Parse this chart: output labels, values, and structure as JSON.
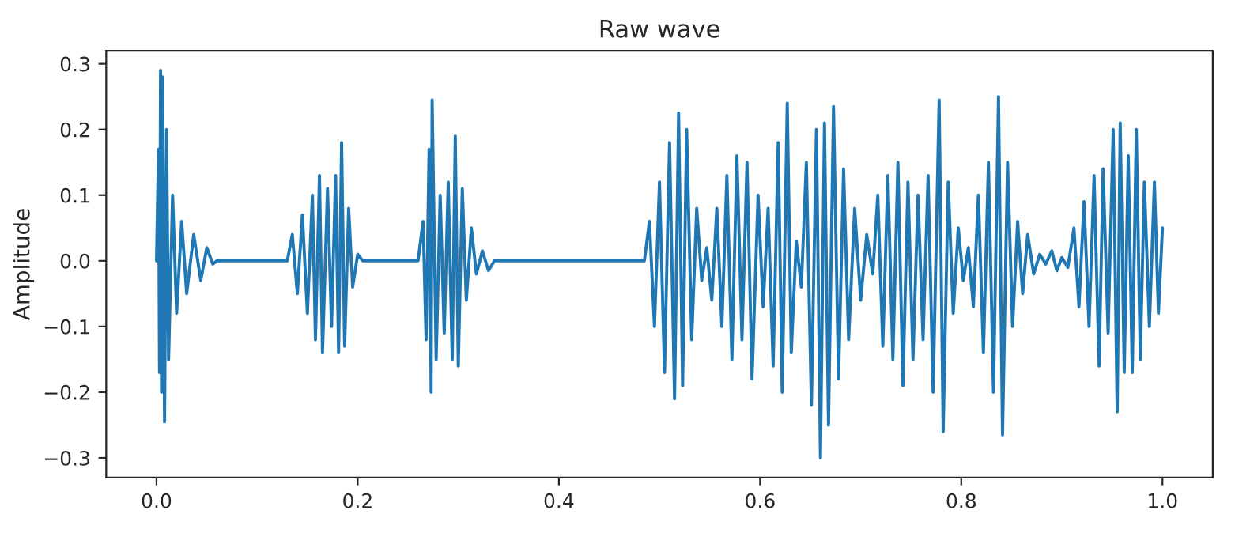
{
  "chart_data": {
    "type": "line",
    "title": "Raw wave",
    "ylabel": "Amplitude",
    "x": [
      0.0,
      0.002,
      0.003,
      0.004,
      0.005,
      0.006,
      0.008,
      0.01,
      0.012,
      0.016,
      0.02,
      0.025,
      0.03,
      0.037,
      0.044,
      0.05,
      0.056,
      0.06,
      0.13,
      0.135,
      0.14,
      0.145,
      0.15,
      0.155,
      0.158,
      0.162,
      0.165,
      0.17,
      0.174,
      0.178,
      0.181,
      0.184,
      0.187,
      0.191,
      0.195,
      0.2,
      0.205,
      0.26,
      0.265,
      0.268,
      0.271,
      0.273,
      0.274,
      0.278,
      0.282,
      0.286,
      0.29,
      0.294,
      0.297,
      0.3,
      0.304,
      0.308,
      0.313,
      0.318,
      0.324,
      0.33,
      0.336,
      0.485,
      0.49,
      0.495,
      0.5,
      0.505,
      0.51,
      0.515,
      0.519,
      0.523,
      0.527,
      0.532,
      0.537,
      0.542,
      0.547,
      0.552,
      0.557,
      0.562,
      0.567,
      0.572,
      0.577,
      0.582,
      0.587,
      0.592,
      0.598,
      0.603,
      0.608,
      0.613,
      0.618,
      0.622,
      0.627,
      0.631,
      0.636,
      0.641,
      0.646,
      0.651,
      0.656,
      0.66,
      0.664,
      0.668,
      0.673,
      0.678,
      0.683,
      0.688,
      0.694,
      0.7,
      0.706,
      0.712,
      0.717,
      0.722,
      0.727,
      0.732,
      0.737,
      0.742,
      0.747,
      0.752,
      0.757,
      0.762,
      0.767,
      0.772,
      0.778,
      0.782,
      0.787,
      0.792,
      0.797,
      0.802,
      0.807,
      0.812,
      0.817,
      0.822,
      0.827,
      0.832,
      0.837,
      0.841,
      0.846,
      0.851,
      0.856,
      0.861,
      0.866,
      0.872,
      0.878,
      0.884,
      0.89,
      0.895,
      0.9,
      0.906,
      0.912,
      0.917,
      0.922,
      0.927,
      0.932,
      0.937,
      0.941,
      0.946,
      0.951,
      0.955,
      0.958,
      0.962,
      0.966,
      0.97,
      0.974,
      0.978,
      0.982,
      0.987,
      0.992,
      0.996,
      1.0
    ],
    "series": [
      {
        "color": "#1f77b4",
        "values": [
          0.0,
          0.17,
          -0.17,
          0.29,
          -0.2,
          0.28,
          -0.245,
          0.2,
          -0.15,
          0.1,
          -0.08,
          0.06,
          -0.05,
          0.04,
          -0.03,
          0.02,
          -0.005,
          0.0,
          0.0,
          0.04,
          -0.05,
          0.07,
          -0.08,
          0.1,
          -0.12,
          0.13,
          -0.14,
          0.11,
          -0.1,
          0.13,
          -0.14,
          0.18,
          -0.13,
          0.08,
          -0.04,
          0.01,
          0.0,
          0.0,
          0.06,
          -0.12,
          0.17,
          -0.2,
          0.245,
          -0.15,
          0.1,
          -0.11,
          0.12,
          -0.15,
          0.19,
          -0.16,
          0.11,
          -0.06,
          0.05,
          -0.02,
          0.015,
          -0.015,
          0.0,
          0.0,
          0.06,
          -0.1,
          0.12,
          -0.17,
          0.18,
          -0.21,
          0.225,
          -0.19,
          0.2,
          -0.12,
          0.08,
          -0.03,
          0.02,
          -0.06,
          0.08,
          -0.1,
          0.13,
          -0.15,
          0.16,
          -0.12,
          0.15,
          -0.18,
          0.1,
          -0.07,
          0.08,
          -0.16,
          0.18,
          -0.2,
          0.24,
          -0.14,
          0.03,
          -0.04,
          0.15,
          -0.22,
          0.2,
          -0.3,
          0.21,
          -0.25,
          0.235,
          -0.18,
          0.14,
          -0.12,
          0.08,
          -0.06,
          0.04,
          -0.02,
          0.1,
          -0.13,
          0.13,
          -0.15,
          0.15,
          -0.19,
          0.12,
          -0.15,
          0.1,
          -0.12,
          0.13,
          -0.2,
          0.245,
          -0.26,
          0.12,
          -0.08,
          0.05,
          -0.03,
          0.02,
          -0.07,
          0.1,
          -0.14,
          0.15,
          -0.2,
          0.25,
          -0.265,
          0.15,
          -0.1,
          0.06,
          -0.05,
          0.04,
          -0.02,
          0.01,
          -0.005,
          0.015,
          -0.015,
          0.005,
          -0.01,
          0.05,
          -0.07,
          0.09,
          -0.1,
          0.13,
          -0.16,
          0.14,
          -0.11,
          0.2,
          -0.23,
          0.21,
          -0.17,
          0.16,
          -0.17,
          0.2,
          -0.15,
          0.12,
          -0.1,
          0.12,
          -0.08,
          0.05
        ]
      }
    ],
    "xlim": [
      -0.05,
      1.05
    ],
    "ylim": [
      -0.33,
      0.32
    ],
    "xticks": [
      {
        "value": 0.0,
        "label": "0.0"
      },
      {
        "value": 0.2,
        "label": "0.2"
      },
      {
        "value": 0.4,
        "label": "0.4"
      },
      {
        "value": 0.6,
        "label": "0.6"
      },
      {
        "value": 0.8,
        "label": "0.8"
      },
      {
        "value": 1.0,
        "label": "1.0"
      }
    ],
    "yticks": [
      {
        "value": -0.3,
        "label": "−0.3"
      },
      {
        "value": -0.2,
        "label": "−0.2"
      },
      {
        "value": -0.1,
        "label": "−0.1"
      },
      {
        "value": 0.0,
        "label": "0.0"
      },
      {
        "value": 0.1,
        "label": "0.1"
      },
      {
        "value": 0.2,
        "label": "0.2"
      },
      {
        "value": 0.3,
        "label": "0.3"
      }
    ],
    "grid": false,
    "legend": false
  }
}
